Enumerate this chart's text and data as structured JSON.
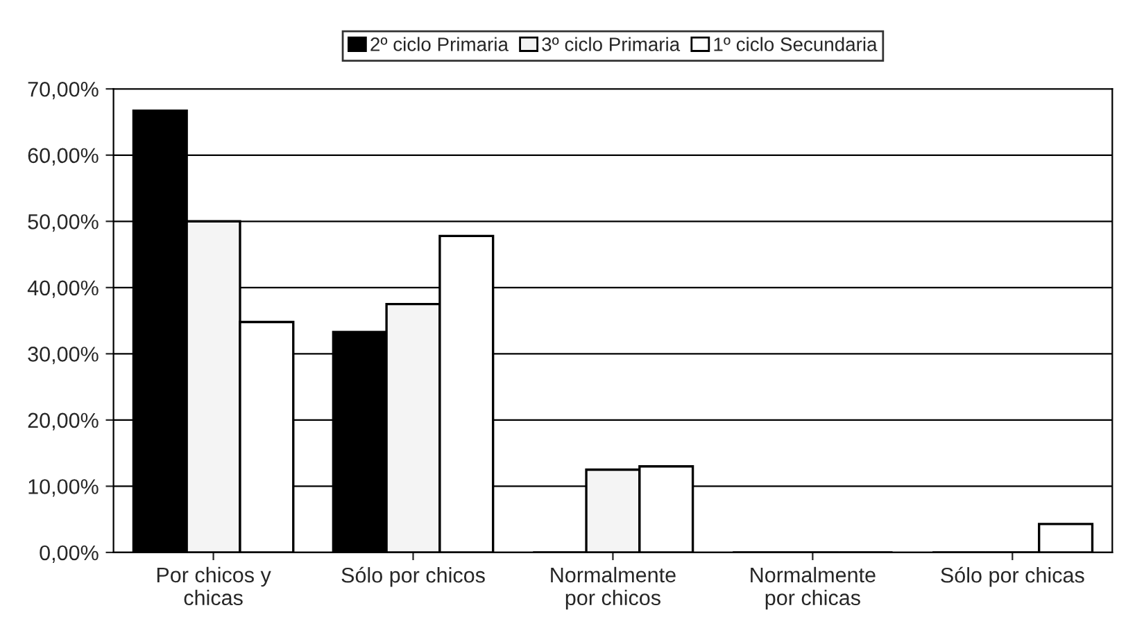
{
  "chart_data": {
    "type": "bar",
    "categories": [
      "Por chicos y\nchicas",
      "Sólo por chicos",
      "Normalmente\npor chicos",
      "Normalmente\npor chicas",
      "Sólo por chicas"
    ],
    "series": [
      {
        "name": "2º ciclo Primaria",
        "color": "#000000",
        "values": [
          66.7,
          33.3,
          0,
          0,
          0
        ]
      },
      {
        "name": "3º ciclo Primaria",
        "color": "#f4f4f4",
        "values": [
          50.0,
          37.5,
          12.5,
          0,
          0
        ]
      },
      {
        "name": "1º ciclo Secundaria",
        "color": "#ffffff",
        "values": [
          34.8,
          47.8,
          13.0,
          0,
          4.3
        ]
      }
    ],
    "ylim": [
      0,
      70
    ],
    "yticks": [
      {
        "value": 0,
        "label": "0,00%"
      },
      {
        "value": 10,
        "label": "10,00%"
      },
      {
        "value": 20,
        "label": "20,00%"
      },
      {
        "value": 30,
        "label": "30,00%"
      },
      {
        "value": 40,
        "label": "40,00%"
      },
      {
        "value": 50,
        "label": "50,00%"
      },
      {
        "value": 60,
        "label": "60,00%"
      },
      {
        "value": 70,
        "label": "70,00%"
      }
    ],
    "grid": "y",
    "legend": "top"
  }
}
